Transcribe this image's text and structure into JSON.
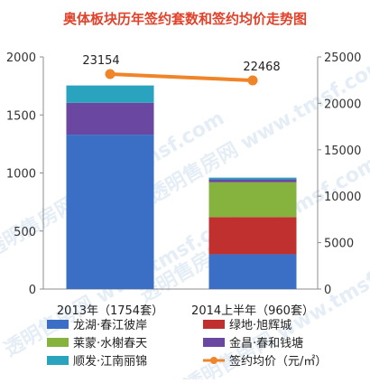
{
  "chart_data": {
    "type": "bar",
    "title": "奥体板块历年签约套数和签约均价走势图",
    "categories": [
      "2013年（1754套）",
      "2014上半年（960套）"
    ],
    "y_left": {
      "ticks": [
        "0",
        "500",
        "1000",
        "1500",
        "2000"
      ],
      "range": [
        0,
        2000
      ]
    },
    "y_right": {
      "ticks": [
        "0",
        "5000",
        "10000",
        "15000",
        "20000",
        "25000"
      ],
      "range": [
        0,
        25000
      ]
    },
    "series": [
      {
        "name": "龙湖·春江彼岸",
        "type": "bar",
        "axis": "left",
        "color": "#3B6FC6",
        "values": [
          1330,
          300
        ]
      },
      {
        "name": "绿地·旭辉城",
        "type": "bar",
        "axis": "left",
        "color": "#C0302F",
        "values": [
          0,
          320
        ]
      },
      {
        "name": "莱蒙·水榭春天",
        "type": "bar",
        "axis": "left",
        "color": "#86B33D",
        "values": [
          0,
          300
        ]
      },
      {
        "name": "金昌·春和钱塘",
        "type": "bar",
        "axis": "left",
        "color": "#6A47A1",
        "values": [
          275,
          25
        ]
      },
      {
        "name": "顺发·江南丽锦",
        "type": "bar",
        "axis": "left",
        "color": "#2AA3BE",
        "values": [
          149,
          15
        ]
      },
      {
        "name": "签约均价（元/㎡）",
        "type": "line",
        "axis": "right",
        "color": "#F08428",
        "values": [
          23154,
          22468
        ]
      }
    ],
    "data_labels": [
      "23154",
      "22468"
    ],
    "legend_position": "bottom",
    "grid": false,
    "watermark": "透明售房网 www.tmsf.com"
  }
}
